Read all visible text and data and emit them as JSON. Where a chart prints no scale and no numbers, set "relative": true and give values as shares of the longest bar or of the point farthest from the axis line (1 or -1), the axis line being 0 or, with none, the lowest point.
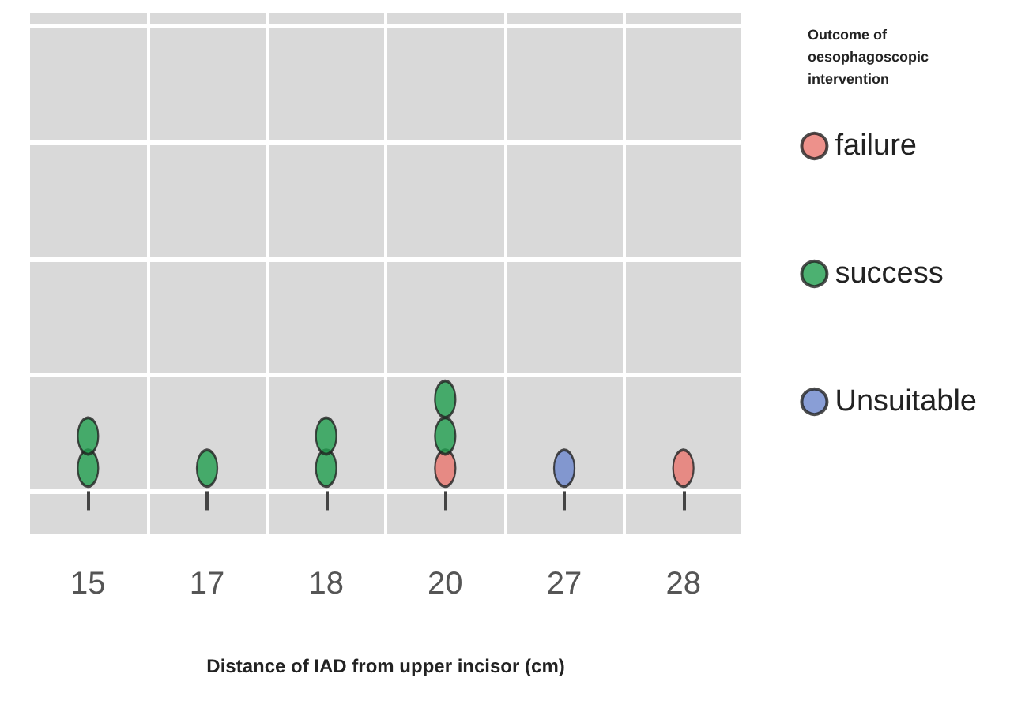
{
  "chart_data": {
    "type": "scatter",
    "categories": [
      "15",
      "17",
      "18",
      "20",
      "27",
      "28"
    ],
    "relative": true,
    "xlabel": "Distance of IAD from upper incisor (cm)",
    "legend_title": "Outcome of oesophagoscopic intervention",
    "legend": "right",
    "grid": true,
    "marker": "circle",
    "series": [
      {
        "name": "failure",
        "color": "#e8766e",
        "x": [
          "20",
          "28"
        ],
        "values": [
          0.25,
          0.25
        ]
      },
      {
        "name": "success",
        "color": "#1f9e4e",
        "x": [
          "15",
          "15",
          "17",
          "18",
          "18",
          "20",
          "20"
        ],
        "values": [
          0.25,
          0.6,
          0.25,
          0.25,
          0.6,
          0.6,
          1
        ]
      },
      {
        "name": "Unsuitable",
        "color": "#6b86cc",
        "x": [
          "27"
        ],
        "values": [
          0.25
        ]
      }
    ]
  }
}
